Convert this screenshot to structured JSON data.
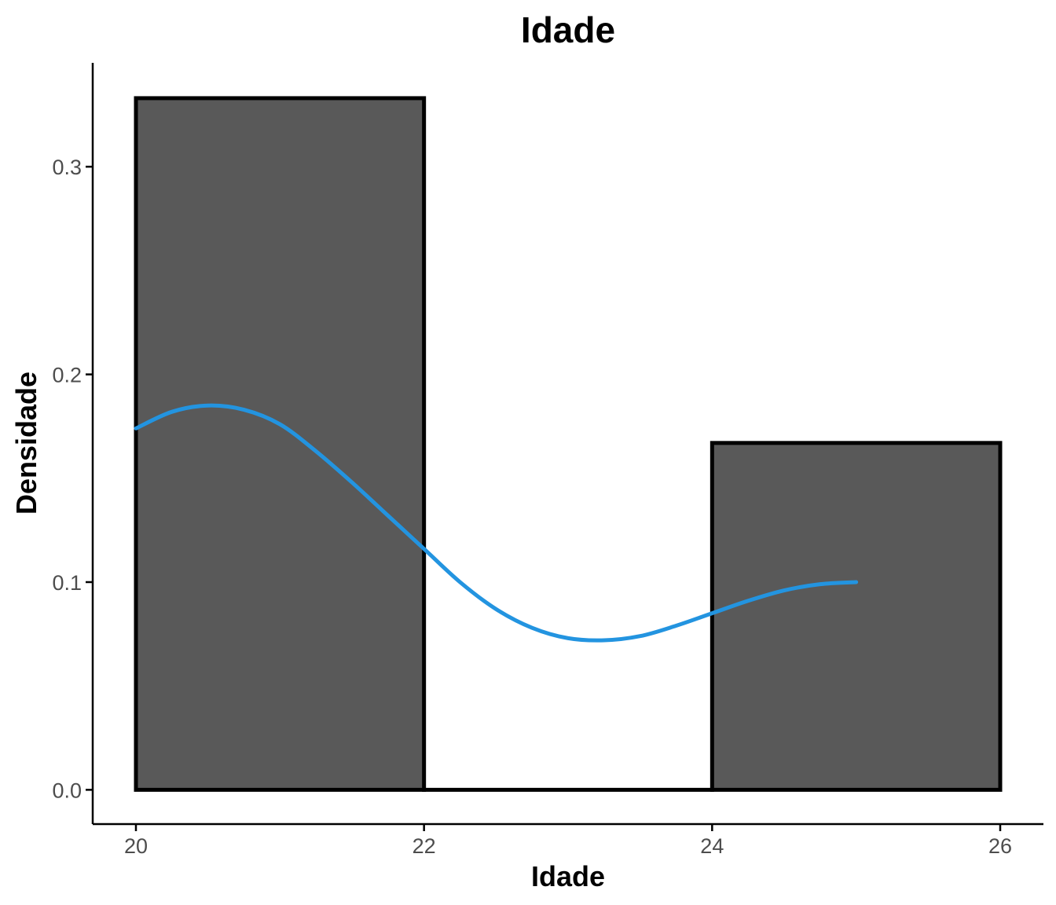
{
  "chart_data": {
    "type": "bar",
    "title": "Idade",
    "xlabel": "Idade",
    "ylabel": "Densidade",
    "xlim": [
      19.7,
      26.3
    ],
    "ylim": [
      -0.0165,
      0.35
    ],
    "x_ticks": [
      20,
      22,
      24,
      26
    ],
    "x_tick_labels": [
      "20",
      "22",
      "24",
      "26"
    ],
    "y_ticks": [
      0.0,
      0.1,
      0.2,
      0.3
    ],
    "y_tick_labels": [
      "0.0",
      "0.1",
      "0.2",
      "0.3"
    ],
    "grid": false,
    "legend": "none",
    "histogram_bins": [
      {
        "x0": 20,
        "x1": 22,
        "density": 0.333
      },
      {
        "x0": 22,
        "x1": 24,
        "density": 0.0
      },
      {
        "x0": 24,
        "x1": 26,
        "density": 0.167
      }
    ],
    "density_curve": {
      "x": [
        20.0,
        20.25,
        20.5,
        20.75,
        21.0,
        21.25,
        21.5,
        21.75,
        22.0,
        22.25,
        22.5,
        22.75,
        23.0,
        23.25,
        23.5,
        23.75,
        24.0,
        24.25,
        24.5,
        24.75,
        25.0
      ],
      "y": [
        0.174,
        0.182,
        0.185,
        0.183,
        0.176,
        0.163,
        0.148,
        0.132,
        0.116,
        0.1,
        0.087,
        0.078,
        0.073,
        0.072,
        0.074,
        0.079,
        0.085,
        0.091,
        0.096,
        0.099,
        0.1
      ]
    },
    "colors": {
      "bar_fill": "#595959",
      "bar_stroke": "#000000",
      "curve": "#2394e0",
      "axis": "#000000",
      "tick_text": "#4d4d4d"
    }
  }
}
